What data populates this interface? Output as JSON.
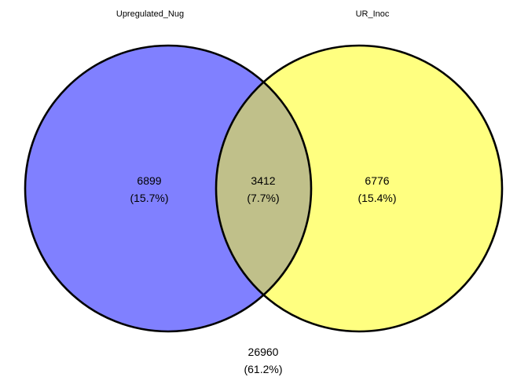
{
  "sets": [
    {
      "name": "Upregulated_Nug",
      "color": "#8080ff"
    },
    {
      "name": "UR_Inoc",
      "color": "#ffff80"
    }
  ],
  "overlap_color": "#c0c08a",
  "regions": {
    "only_a": {
      "count": "6899",
      "percent": "(15.7%)"
    },
    "both": {
      "count": "3412",
      "percent": "(7.7%)"
    },
    "only_b": {
      "count": "6776",
      "percent": "(15.4%)"
    },
    "neither": {
      "count": "26960",
      "percent": "(61.2%)"
    }
  }
}
